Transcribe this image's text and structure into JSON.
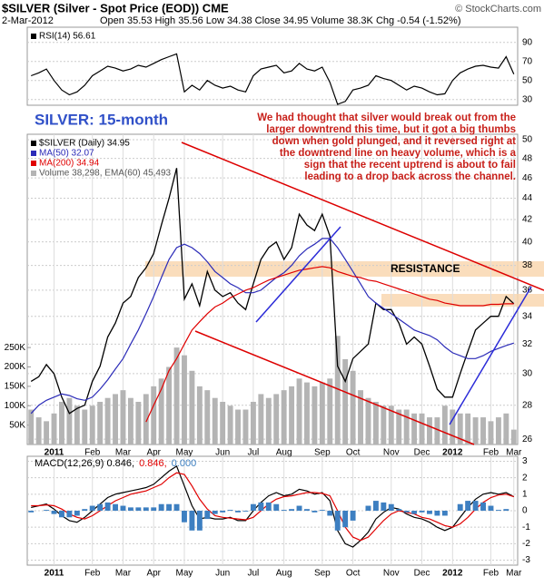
{
  "header": {
    "title": "$SILVER (Silver - Spot Price (EOD)) CME",
    "source": "© StockCharts.com",
    "date": "2-Mar-2012",
    "quote": "Open 35.53 High 35.56 Low 34.38 Close 34.95 Volume 38.3K Chg -0.54 (-1.52%)"
  },
  "chart_data": [
    {
      "type": "line",
      "series": [
        {
          "name": "RSI(14) 56.61",
          "color": "#000000",
          "values": [
            55,
            58,
            62,
            50,
            40,
            35,
            38,
            45,
            55,
            60,
            65,
            63,
            60,
            62,
            66,
            64,
            68,
            72,
            75,
            78,
            38,
            45,
            40,
            50,
            45,
            42,
            44,
            40,
            38,
            55,
            62,
            64,
            66,
            58,
            60,
            68,
            62,
            60,
            64,
            48,
            25,
            28,
            40,
            42,
            45,
            55,
            52,
            50,
            45,
            40,
            44,
            42,
            38,
            35,
            36,
            50,
            58,
            62,
            65,
            66,
            64,
            63,
            75,
            56.61
          ]
        }
      ],
      "ylim": [
        24,
        106
      ],
      "yticks": [
        30,
        50,
        70,
        90
      ],
      "grid": true
    },
    {
      "type": "line",
      "log_scale": true,
      "label": "SILVER: 15-month",
      "note_lines": [
        "We had thought that silver would break out from the",
        "larger downtrend this time, but it got a big thumbs",
        "down when gold plunged, and it reversed right at",
        "the downtrend line on heavy volume, which is a",
        "sign that the recent uptrend is about to fail",
        "leading to a drop back across the channel."
      ],
      "resistance_label": "RESISTANCE",
      "categories": [
        null,
        null,
        null,
        "2011",
        null,
        null,
        null,
        null,
        "Feb",
        null,
        null,
        null,
        "Mar",
        null,
        null,
        null,
        "Apr",
        null,
        null,
        null,
        "May",
        null,
        null,
        null,
        null,
        "Jun",
        null,
        null,
        null,
        "Jul",
        null,
        null,
        null,
        "Aug",
        null,
        null,
        null,
        null,
        "Sep",
        null,
        null,
        null,
        "Oct",
        null,
        null,
        null,
        null,
        "Nov",
        null,
        null,
        null,
        "Dec",
        null,
        null,
        null,
        "2012",
        null,
        null,
        null,
        null,
        "Feb",
        null,
        null,
        "Mar"
      ],
      "series": [
        {
          "name": "Volume 38,298, EMA(60) 45,493",
          "color": "#b4b4b4",
          "type": "bar",
          "axis": "y2",
          "values": [
            90000,
            70000,
            60000,
            80000,
            110000,
            120000,
            100000,
            90000,
            100000,
            110000,
            120000,
            130000,
            140000,
            120000,
            110000,
            130000,
            150000,
            170000,
            200000,
            250000,
            230000,
            190000,
            150000,
            140000,
            120000,
            110000,
            100000,
            90000,
            90000,
            110000,
            130000,
            120000,
            130000,
            140000,
            150000,
            170000,
            160000,
            150000,
            160000,
            170000,
            280000,
            220000,
            190000,
            140000,
            120000,
            110000,
            100000,
            100000,
            90000,
            90000,
            80000,
            80000,
            70000,
            70000,
            100000,
            90000,
            80000,
            80000,
            70000,
            70000,
            60000,
            70000,
            80000,
            38298
          ]
        },
        {
          "name": "$SILVER (Daily) 34.95",
          "color": "#000000",
          "values": [
            29.5,
            29.8,
            30.6,
            30.0,
            28.5,
            27.5,
            27.8,
            28.0,
            29.5,
            30.5,
            32.5,
            33.5,
            35.0,
            35.5,
            37.0,
            37.8,
            39.0,
            41.5,
            44.0,
            47.0,
            35.3,
            36.5,
            34.8,
            37.5,
            36.0,
            35.5,
            35.8,
            35.0,
            34.5,
            36.5,
            38.5,
            39.5,
            40.0,
            38.5,
            39.5,
            42.5,
            41.5,
            41.0,
            42.5,
            40.5,
            30.5,
            29.5,
            31.0,
            31.5,
            32.0,
            35.0,
            34.5,
            34.5,
            33.5,
            32.0,
            32.5,
            32.0,
            30.5,
            29.0,
            28.5,
            28.5,
            30.0,
            31.5,
            33.0,
            33.5,
            34.0,
            34.0,
            35.5,
            34.95
          ]
        },
        {
          "name": "MA(50) 32.07",
          "color": "#2b2bb8",
          "values": [
            27.5,
            28,
            28.3,
            28.5,
            28.7,
            28.6,
            28.4,
            28.3,
            28.5,
            29,
            29.6,
            30.3,
            31,
            32,
            33,
            34.2,
            35.5,
            37,
            38.5,
            39.5,
            39.8,
            39.5,
            39,
            38.3,
            37.5,
            37,
            36.5,
            36.2,
            35.8,
            35.8,
            36,
            36.5,
            37,
            37.4,
            38,
            38.8,
            39.4,
            39.8,
            40.3,
            40.3,
            39.5,
            38.5,
            37.5,
            36.5,
            35.5,
            35,
            34.6,
            34.2,
            33.8,
            33.4,
            33,
            32.8,
            32.6,
            32.3,
            31.8,
            31.4,
            31.2,
            31,
            31,
            31.2,
            31.5,
            31.7,
            31.9,
            32.07
          ]
        },
        {
          "name": "MA(200) 34.94",
          "color": "#e00000",
          "values": [
            null,
            null,
            null,
            null,
            null,
            null,
            null,
            null,
            null,
            null,
            null,
            null,
            null,
            null,
            null,
            27,
            28,
            29,
            30.2,
            31,
            32,
            33,
            33.6,
            34.2,
            34.7,
            35,
            35.4,
            35.7,
            36,
            36.2,
            36.5,
            36.8,
            37,
            37.2,
            37.4,
            37.6,
            37.7,
            37.8,
            37.9,
            37.8,
            37.5,
            37.3,
            37.1,
            37,
            36.8,
            36.7,
            36.5,
            36.3,
            36.1,
            35.9,
            35.7,
            35.5,
            35.3,
            35.2,
            35,
            34.9,
            34.8,
            34.8,
            34.8,
            34.8,
            34.9,
            34.9,
            34.95,
            34.94
          ]
        }
      ],
      "ylim": [
        25.7,
        50.6
      ],
      "yticks": [
        26,
        28,
        30,
        32,
        34,
        36,
        38,
        40,
        42,
        44,
        46,
        48,
        50
      ],
      "y2lim": [
        0,
        800000
      ],
      "y2ticks": [
        {
          "value": 50000,
          "label": "50K"
        },
        {
          "value": 100000,
          "label": "100K"
        },
        {
          "value": 150000,
          "label": "150K"
        },
        {
          "value": 200000,
          "label": "200K"
        },
        {
          "value": 250000,
          "label": "250K"
        }
      ],
      "grid": true
    },
    {
      "type": "line",
      "categories": [
        null,
        null,
        null,
        "2011",
        null,
        null,
        null,
        null,
        "Feb",
        null,
        null,
        null,
        "Mar",
        null,
        null,
        null,
        "Apr",
        null,
        null,
        null,
        "May",
        null,
        null,
        null,
        null,
        "Jun",
        null,
        null,
        null,
        "Jul",
        null,
        null,
        null,
        "Aug",
        null,
        null,
        null,
        null,
        "Sep",
        null,
        null,
        null,
        "Oct",
        null,
        null,
        null,
        null,
        "Nov",
        null,
        null,
        null,
        "Dec",
        null,
        null,
        null,
        "2012",
        null,
        null,
        null,
        null,
        "Feb",
        null,
        null,
        "Mar"
      ],
      "series": [
        {
          "name": "MACD(12,26,9) 0.846,",
          "color": "#000000",
          "values": [
            0.2,
            0.3,
            0.4,
            0.1,
            -0.3,
            -0.6,
            -0.7,
            -0.4,
            0,
            0.4,
            0.8,
            1.0,
            1.1,
            1.2,
            1.3,
            1.4,
            1.6,
            2.0,
            2.4,
            2.7,
            1.5,
            0.3,
            -0.5,
            -0.4,
            -0.5,
            -0.5,
            -0.4,
            -0.6,
            -0.6,
            0,
            0.5,
            0.9,
            1.1,
            0.9,
            1.0,
            1.3,
            1.2,
            1.0,
            1.1,
            0.6,
            -1.2,
            -2.0,
            -2.2,
            -1.8,
            -1.3,
            -0.5,
            -0.1,
            0.2,
            0.1,
            -0.2,
            -0.4,
            -0.5,
            -0.7,
            -1.0,
            -1.2,
            -1.0,
            -0.4,
            0.2,
            0.7,
            1.0,
            1.1,
            1.0,
            1.1,
            0.846
          ]
        },
        {
          "name": "0.846,",
          "color": "#e00000",
          "values": [
            0.3,
            0.3,
            0.35,
            0.3,
            0.1,
            -0.2,
            -0.4,
            -0.5,
            -0.3,
            0,
            0.3,
            0.6,
            0.8,
            1.0,
            1.1,
            1.2,
            1.4,
            1.6,
            2.0,
            2.3,
            2.2,
            1.5,
            0.7,
            0.1,
            -0.3,
            -0.4,
            -0.45,
            -0.5,
            -0.55,
            -0.4,
            0,
            0.4,
            0.7,
            0.85,
            0.9,
            1.0,
            1.1,
            1.1,
            1.05,
            0.9,
            0,
            -1.0,
            -1.6,
            -1.8,
            -1.6,
            -1.1,
            -0.6,
            -0.2,
            0,
            -0.1,
            -0.2,
            -0.4,
            -0.5,
            -0.7,
            -0.9,
            -1.0,
            -0.8,
            -0.4,
            0.1,
            0.5,
            0.8,
            0.95,
            1.0,
            0.846
          ]
        },
        {
          "name": "0.000",
          "color": "#3d7fc1",
          "type": "bar",
          "values": [
            -0.1,
            0,
            0.05,
            -0.2,
            -0.4,
            -0.4,
            -0.3,
            0.1,
            0.3,
            0.4,
            0.5,
            0.4,
            0.3,
            0.2,
            0.2,
            0.2,
            0.2,
            0.4,
            0.4,
            0.4,
            -0.7,
            -1.2,
            -1.2,
            -0.5,
            -0.2,
            -0.1,
            0.05,
            -0.1,
            -0.05,
            0.4,
            0.5,
            0.5,
            0.4,
            0.05,
            0.1,
            0.3,
            0.1,
            -0.1,
            0.05,
            -0.3,
            -1.2,
            -1.0,
            -0.6,
            0,
            0.3,
            0.6,
            0.5,
            0.4,
            0.1,
            -0.1,
            -0.2,
            -0.1,
            -0.2,
            -0.3,
            -0.3,
            0,
            0.4,
            0.6,
            0.6,
            0.5,
            0.3,
            0.05,
            0.1,
            0
          ]
        }
      ],
      "ylim": [
        -3.3,
        3.3
      ],
      "yticks": [
        -3,
        -2,
        -1,
        0,
        1,
        2,
        3
      ],
      "grid": true
    }
  ]
}
